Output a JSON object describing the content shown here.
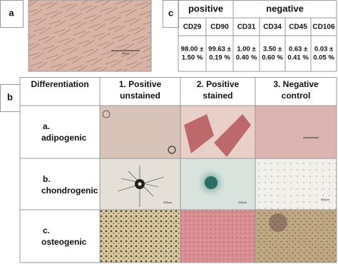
{
  "panels": {
    "a": {
      "label": "a",
      "scale_bar": "50µm"
    },
    "c": {
      "label": "c",
      "groups": [
        "positive",
        "negative"
      ],
      "markers": [
        "CD29",
        "CD90",
        "CD31",
        "CD34",
        "CD45",
        "CD106"
      ],
      "values": [
        [
          "98.00 ±",
          "1.50 %"
        ],
        [
          "99.63 ±",
          "0.19 %"
        ],
        [
          "1.00 ±",
          "0.40 %"
        ],
        [
          "3.50 ±",
          "0.60 %"
        ],
        [
          "0.63 ±",
          "0.41 %"
        ],
        [
          "0.03 ±",
          "0.05 %"
        ]
      ]
    },
    "b": {
      "label": "b",
      "header": [
        "Differentiation",
        [
          "1. Positive",
          "unstained"
        ],
        [
          "2. Positive",
          "stained"
        ],
        [
          "3. Negative",
          "control"
        ]
      ],
      "rows": [
        [
          "a.",
          "adipogenic"
        ],
        [
          "b.",
          "chondrogenic"
        ],
        [
          "c.",
          "osteogenic"
        ]
      ],
      "scale_bars": [
        "200µm",
        "200µm",
        "500µm"
      ]
    }
  }
}
